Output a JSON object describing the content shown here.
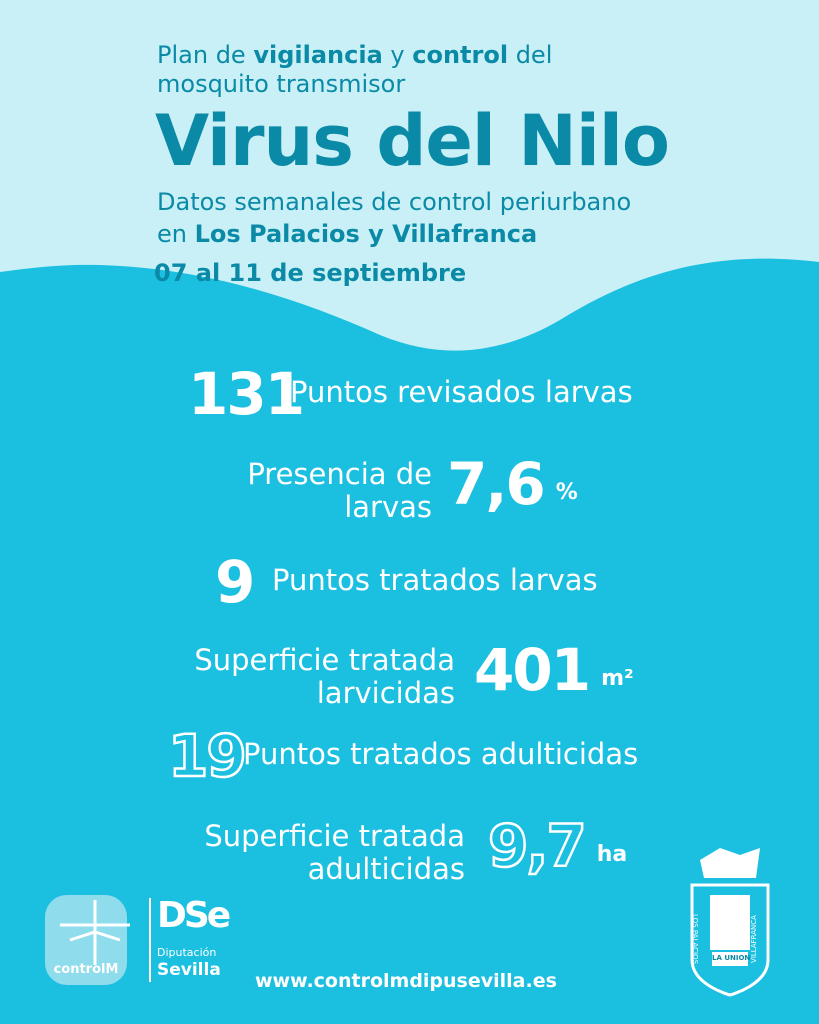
{
  "header": {
    "intro": [
      {
        "text": "Plan de ",
        "bold": false
      },
      {
        "text": "vigilancia",
        "bold": true
      },
      {
        "text": " y ",
        "bold": false
      },
      {
        "text": "control",
        "bold": true
      },
      {
        "text": " del",
        "bold": false
      }
    ],
    "intro2": "mosquito transmisor",
    "title": "Virus del Nilo",
    "subtitle": "Datos semanales de control periurbano",
    "place_prefix": "en ",
    "place": "Los Palacios y Villafranca",
    "dates": "07 al 11 de septiembre"
  },
  "stats": [
    {
      "value": "131",
      "unit": "",
      "label": [
        "Puntos revisados larvas"
      ],
      "layout": "value-first",
      "outline": false
    },
    {
      "value": "7,6",
      "unit": "%",
      "label": [
        "Presencia de",
        "larvas"
      ],
      "layout": "label-first",
      "outline": false
    },
    {
      "value": "9",
      "unit": "",
      "label": [
        "Puntos tratados larvas"
      ],
      "layout": "value-first",
      "outline": false
    },
    {
      "value": "401",
      "unit": "m²",
      "label": [
        "Superficie tratada",
        "larvicidas"
      ],
      "layout": "label-first",
      "outline": false
    },
    {
      "value": "19",
      "unit": "",
      "label": [
        "Puntos tratados adulticidas"
      ],
      "layout": "value-first",
      "outline": true
    },
    {
      "value": "9,7",
      "unit": "ha",
      "label": [
        "Superficie tratada",
        "adulticidas"
      ],
      "layout": "label-first",
      "outline": true
    }
  ],
  "footer": {
    "logo1": "controlM",
    "logo2_mark": "DSe",
    "logo2_top": "Diputación",
    "logo2_bottom": "Sevilla",
    "url": "www.controlmdipusevilla.es",
    "crest_left": "LOS PALACIOS",
    "crest_right": "VILLAFRANCA",
    "crest_banner": "LA UNION"
  }
}
